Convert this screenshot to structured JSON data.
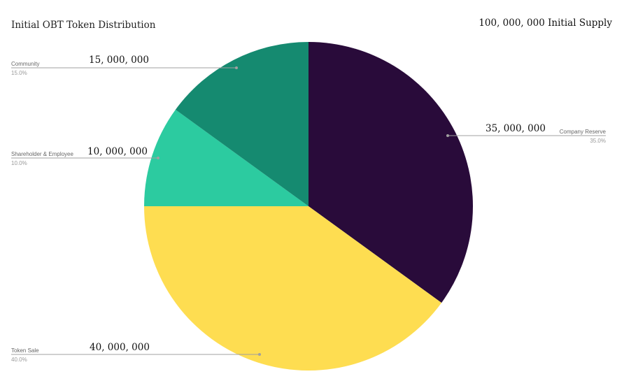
{
  "chart_data": {
    "type": "pie",
    "title": "Initial OBT Token Distribution",
    "subtitle": "100, 000, 000 Initial Supply",
    "start_angle_deg": 0,
    "direction": "clockwise",
    "slices": [
      {
        "label": "Company Reserve",
        "value": 35,
        "percent_label": "35.0%",
        "amount": "35, 000, 000",
        "color": "#290b3a"
      },
      {
        "label": "Token Sale",
        "value": 40,
        "percent_label": "40.0%",
        "amount": "40, 000, 000",
        "color": "#fedd51"
      },
      {
        "label": "Shareholder & Employee",
        "value": 10,
        "percent_label": "10.0%",
        "amount": "10, 000, 000",
        "color": "#2ccba0"
      },
      {
        "label": "Community",
        "value": 15,
        "percent_label": "15.0%",
        "amount": "15, 000, 000",
        "color": "#158a70"
      }
    ],
    "leader_line_color": "#a0a0a0",
    "label_color": "#666666",
    "percent_color": "#999999"
  }
}
